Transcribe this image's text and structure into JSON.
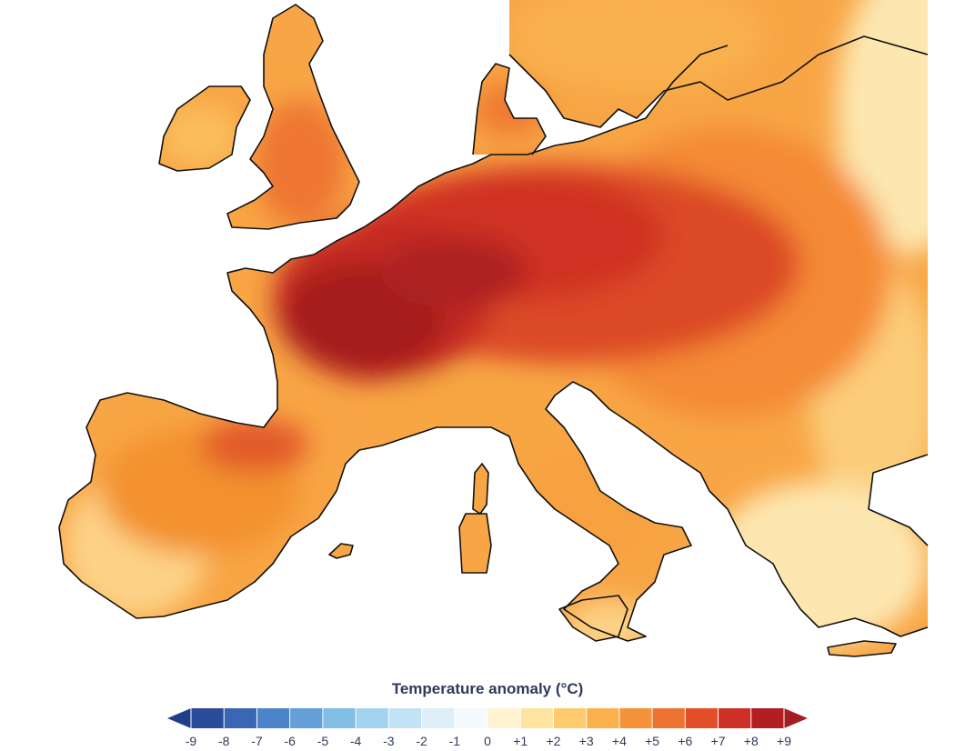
{
  "legend": {
    "title": "Temperature anomaly (°C)",
    "ticks": [
      "-9",
      "-8",
      "-7",
      "-6",
      "-5",
      "-4",
      "-3",
      "-2",
      "-1",
      "0",
      "+1",
      "+2",
      "+3",
      "+4",
      "+5",
      "+6",
      "+7",
      "+8",
      "+9"
    ],
    "colors": [
      "#2b4c9b",
      "#3a66b5",
      "#4d83c9",
      "#649fd8",
      "#82bde6",
      "#a3d3ef",
      "#c2e3f6",
      "#deeffa",
      "#f4fafd",
      "#fff3d2",
      "#fde4a0",
      "#fdcb6e",
      "#fbb24c",
      "#f6933a",
      "#ee7230",
      "#e14e28",
      "#cc3026",
      "#b21e22"
    ],
    "min_color": "#1f3f8a",
    "max_color": "#a51c22"
  },
  "map": {
    "region": "Europe",
    "coastline_color": "#111111",
    "sea_color": "#ffffff"
  }
}
